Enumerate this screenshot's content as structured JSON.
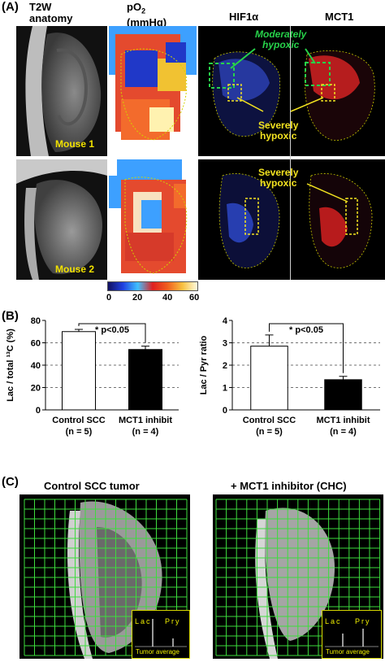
{
  "panel_a": {
    "label": "(A)",
    "headers": {
      "anatomy_l1": "T2W",
      "anatomy_l2": "anatomy",
      "po2_l1": "pO",
      "po2_sub": "2",
      "po2_l2": "(mmHg)",
      "hif": "HIF1α",
      "mct": "MCT1"
    },
    "mouse1": "Mouse 1",
    "mouse2": "Mouse 2",
    "ann_moderate_l1": "Moderately",
    "ann_moderate_l2": "hypoxic",
    "ann_severe1_l1": "Severely",
    "ann_severe1_l2": "hypoxic",
    "ann_severe2_l1": "Severely",
    "ann_severe2_l2": "hypoxic",
    "colorbar_ticks": [
      "0",
      "20",
      "40",
      "60"
    ]
  },
  "panel_b": {
    "label": "(B)"
  },
  "panel_c": {
    "label": "(C)",
    "title_left": "Control SCC tumor",
    "title_right": "+ MCT1 inhibitor (CHC)",
    "inset_lac": "Lac",
    "inset_pyr": "Pry",
    "inset_caption": "Tumor average"
  },
  "chart_data": [
    {
      "type": "bar",
      "categories": [
        "Control SCC (n = 5)",
        "MCT1 inhibit (n = 4)"
      ],
      "cat_l1": [
        "Control SCC",
        "MCT1 inhibit"
      ],
      "cat_l2": [
        "(n = 5)",
        "(n = 4)"
      ],
      "values": [
        70,
        54
      ],
      "errors": [
        2,
        3
      ],
      "bar_colors": [
        "#ffffff",
        "#000000"
      ],
      "ylabel": "Lac / total ¹³C (%)",
      "ylim": [
        0,
        80
      ],
      "yticks": [
        0,
        20,
        40,
        60,
        80
      ],
      "grid": "dashed at 20, 40, 60",
      "annotation": "* p<0.05"
    },
    {
      "type": "bar",
      "categories": [
        "Control SCC (n = 5)",
        "MCT1 inhibit (n = 4)"
      ],
      "cat_l1": [
        "Control SCC",
        "MCT1 inhibit"
      ],
      "cat_l2": [
        "(n = 5)",
        "(n = 4)"
      ],
      "values": [
        2.85,
        1.35
      ],
      "errors": [
        0.5,
        0.15
      ],
      "bar_colors": [
        "#ffffff",
        "#000000"
      ],
      "ylabel": "Lac / Pyr ratio",
      "ylim": [
        0,
        4
      ],
      "yticks": [
        0,
        1,
        2,
        3,
        4
      ],
      "grid": "dashed at 1, 2, 3",
      "annotation": "* p<0.05"
    }
  ]
}
